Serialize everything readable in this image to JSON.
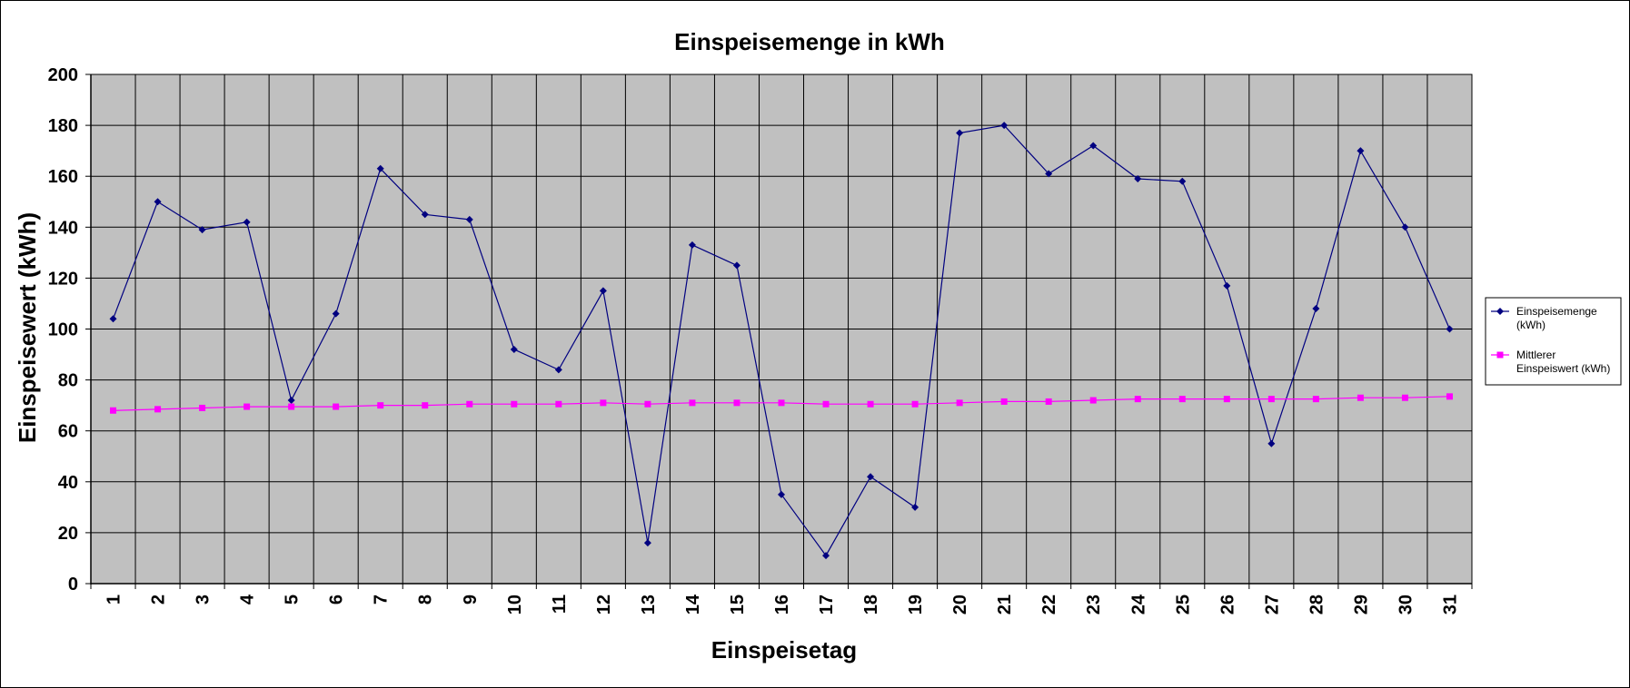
{
  "chart_data": {
    "type": "line",
    "title": "Einspeisemenge in kWh",
    "xlabel": "Einspeisetag",
    "ylabel": "Einspeisewert  (kWh)",
    "categories": [
      "1",
      "2",
      "3",
      "4",
      "5",
      "6",
      "7",
      "8",
      "9",
      "10",
      "11",
      "12",
      "13",
      "14",
      "15",
      "16",
      "17",
      "18",
      "19",
      "20",
      "21",
      "22",
      "23",
      "24",
      "25",
      "26",
      "27",
      "28",
      "29",
      "30",
      "31"
    ],
    "ylim": [
      0,
      200
    ],
    "yticks": [
      "0",
      "20",
      "40",
      "60",
      "80",
      "100",
      "120",
      "140",
      "160",
      "180",
      "200"
    ],
    "grid": true,
    "legend_position": "right",
    "plot_background": "#c0c0c0",
    "series": [
      {
        "name": "Einspeisemenge (kWh)",
        "name_lines": [
          "Einspeisemenge",
          "(kWh)"
        ],
        "color": "#000080",
        "marker": "diamond",
        "values": [
          104,
          150,
          139,
          142,
          72,
          106,
          163,
          145,
          143,
          92,
          84,
          115,
          16,
          133,
          125,
          35,
          11,
          42,
          30,
          177,
          180,
          161,
          172,
          159,
          158,
          117,
          55,
          108,
          170,
          140,
          100
        ]
      },
      {
        "name": "Mittlerer Einspeiswert (kWh)",
        "name_lines": [
          "Mittlerer",
          "Einspeiswert (kWh)"
        ],
        "color": "#ff00ff",
        "marker": "square",
        "values": [
          68,
          68.5,
          69,
          69.5,
          69.5,
          69.5,
          70,
          70,
          70.5,
          70.5,
          70.5,
          71,
          70.5,
          71,
          71,
          71,
          70.5,
          70.5,
          70.5,
          71,
          71.5,
          71.5,
          72,
          72.5,
          72.5,
          72.5,
          72.5,
          72.5,
          73,
          73,
          73.5
        ]
      }
    ]
  }
}
